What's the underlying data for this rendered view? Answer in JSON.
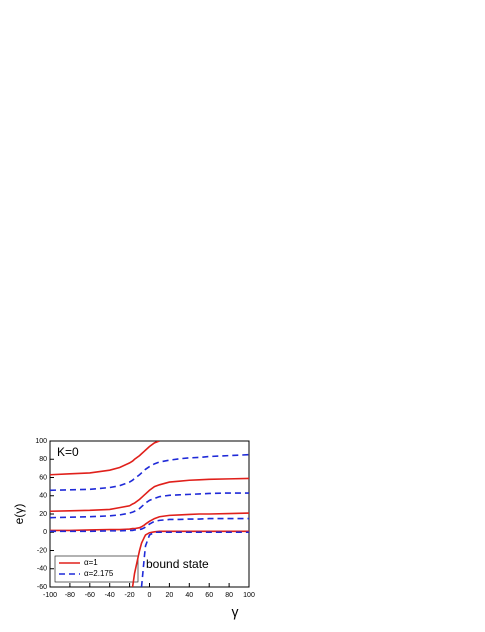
{
  "chart_data": {
    "type": "line",
    "x_label": "γ",
    "y_label": "e(γ)",
    "annotations": [
      "K=0",
      "bound state"
    ],
    "xlim": [
      -100,
      100
    ],
    "ylim": [
      -60,
      100
    ],
    "xticks": [
      -100,
      -80,
      -60,
      -40,
      -20,
      0,
      20,
      40,
      60,
      80,
      100
    ],
    "yticks": [
      -60,
      -40,
      -20,
      0,
      20,
      40,
      60,
      80,
      100
    ],
    "legend": "lower left",
    "x": [
      -100,
      -80,
      -60,
      -40,
      -30,
      -20,
      -17,
      -15,
      -10,
      -8,
      -5,
      -4,
      0,
      5,
      10,
      20,
      30,
      40,
      50,
      60,
      80,
      100
    ],
    "series": [
      {
        "name": "α=1",
        "color": "#e0201b",
        "style": "solid",
        "values": [
          63,
          64,
          65,
          68,
          71,
          76,
          78,
          80,
          84,
          86,
          89,
          90,
          94,
          98,
          100,
          null,
          null,
          null,
          null,
          null,
          null,
          null
        ]
      },
      {
        "color": "#e0201b",
        "style": "solid",
        "values": [
          23,
          23.5,
          24,
          25,
          27,
          29,
          31,
          32,
          36,
          38,
          41,
          42,
          46,
          50,
          52,
          55,
          56,
          57,
          57.5,
          58,
          58.5,
          59
        ]
      },
      {
        "color": "#e0201b",
        "style": "solid",
        "values": [
          2,
          2,
          2.5,
          3,
          3,
          3.5,
          4,
          4,
          5,
          6,
          8,
          9,
          12,
          15,
          17,
          18.5,
          19,
          19.5,
          20,
          20,
          20.5,
          21
        ]
      },
      {
        "color": "#e0201b",
        "style": "solid",
        "values": [
          null,
          null,
          null,
          null,
          null,
          null,
          -60,
          -45,
          -20,
          -12,
          -5,
          -3,
          -0.5,
          0.5,
          1,
          1,
          1,
          1,
          1,
          1,
          1,
          1
        ]
      },
      {
        "name": "α=2.175",
        "color": "#1f2ad8",
        "style": "dashed",
        "values": [
          46,
          46.5,
          47,
          49,
          51,
          55,
          57,
          59,
          63,
          65,
          68,
          69,
          72,
          75,
          77,
          79,
          80.5,
          81.5,
          82,
          83,
          84,
          85
        ]
      },
      {
        "color": "#1f2ad8",
        "style": "dashed",
        "values": [
          16,
          16.5,
          17,
          18,
          19,
          21,
          22,
          23,
          26,
          28,
          31,
          32,
          35,
          37,
          39,
          40.5,
          41,
          41.5,
          42,
          42.5,
          43,
          43
        ]
      },
      {
        "color": "#1f2ad8",
        "style": "dashed",
        "values": [
          1,
          1,
          1,
          1.5,
          1.5,
          2,
          2,
          2.5,
          3,
          3.5,
          5,
          6,
          9,
          12,
          13,
          14,
          14,
          14.5,
          14.5,
          15,
          15,
          15
        ]
      },
      {
        "color": "#1f2ad8",
        "style": "dashed",
        "values": [
          null,
          null,
          null,
          null,
          null,
          null,
          null,
          null,
          null,
          -60,
          -25,
          -15,
          -3,
          0,
          0,
          0,
          0,
          0,
          0,
          0,
          0,
          0
        ]
      }
    ]
  }
}
